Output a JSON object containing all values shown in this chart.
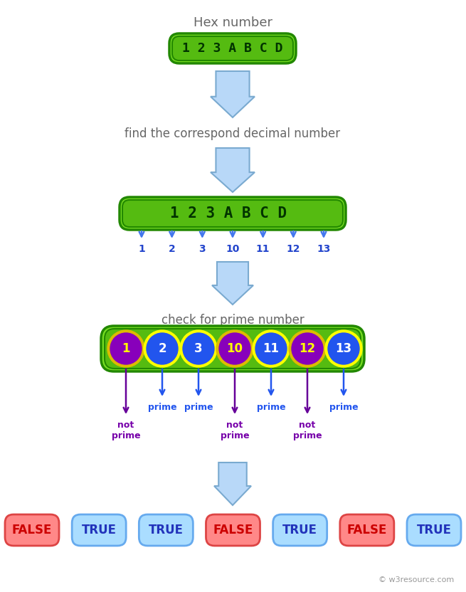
{
  "title": "Hex number",
  "hex_label": "1 2 3 A B C D",
  "hex_chars": [
    "1",
    "2",
    "3",
    "A",
    "B",
    "C",
    "D"
  ],
  "decimal_values": [
    "1",
    "2",
    "3",
    "10",
    "11",
    "12",
    "13"
  ],
  "is_prime": [
    false,
    true,
    true,
    false,
    true,
    false,
    true
  ],
  "step2_label": "find the correspond decimal number",
  "step3_label": "check for prime number",
  "result_labels": [
    "FALSE",
    "TRUE",
    "TRUE",
    "FALSE",
    "TRUE",
    "FALSE",
    "TRUE"
  ],
  "bg_color": "#ffffff",
  "green_box_outer": "#77dd22",
  "green_box_inner": "#55bb11",
  "green_box_edge": "#228800",
  "green_box_text": "#003300",
  "arrow_fill": "#b8d8f8",
  "arrow_edge": "#7aaad0",
  "small_arrow_color": "#4477ee",
  "decimal_text_color": "#2244cc",
  "circle_prime_fill": "#2255ee",
  "circle_notprime_fill": "#8800bb",
  "circle_ring_prime": "#ffff00",
  "circle_ring_notprime": "#ddbb00",
  "circle_text_prime": "#ffffff",
  "circle_text_notprime": "#ffff00",
  "prime_arrow_color": "#2255ee",
  "notprime_arrow_color": "#660099",
  "prime_label_color": "#2255ee",
  "notprime_label_color": "#7700aa",
  "false_bg": "#ff8888",
  "false_edge": "#dd4444",
  "false_text": "#cc0000",
  "true_bg": "#aaddff",
  "true_edge": "#66aaee",
  "true_text": "#2233bb",
  "step_text_color": "#666666",
  "watermark": "© w3resource.com"
}
